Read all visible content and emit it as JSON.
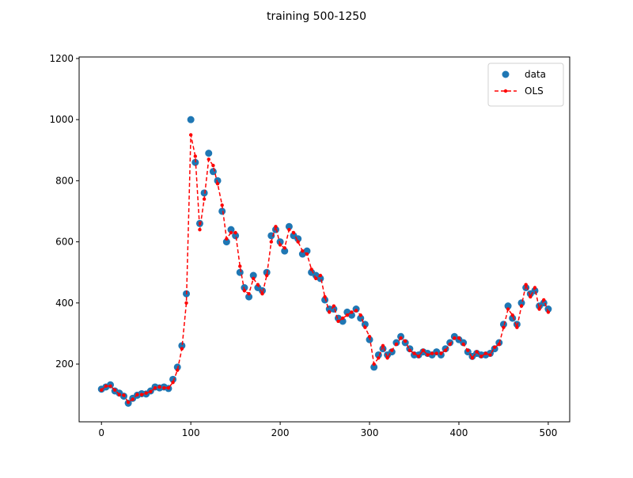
{
  "chart_data": {
    "type": "scatter",
    "title": "training 500-1250",
    "x": [
      0,
      5,
      10,
      15,
      20,
      25,
      30,
      35,
      40,
      45,
      50,
      55,
      60,
      65,
      70,
      75,
      80,
      85,
      90,
      95,
      100,
      105,
      110,
      115,
      120,
      125,
      130,
      135,
      140,
      145,
      150,
      155,
      160,
      165,
      170,
      175,
      180,
      185,
      190,
      195,
      200,
      205,
      210,
      215,
      220,
      225,
      230,
      235,
      240,
      245,
      250,
      255,
      260,
      265,
      270,
      275,
      280,
      285,
      290,
      295,
      300,
      305,
      310,
      315,
      320,
      325,
      330,
      335,
      340,
      345,
      350,
      355,
      360,
      365,
      370,
      375,
      380,
      385,
      390,
      395,
      400,
      405,
      410,
      415,
      420,
      425,
      430,
      435,
      440,
      445,
      450,
      455,
      460,
      465,
      470,
      475,
      480,
      485,
      490,
      495,
      500
    ],
    "series": [
      {
        "name": "data",
        "color": "#1f77b4",
        "marker": "o",
        "linestyle": "none",
        "values": [
          118,
          125,
          132,
          112,
          105,
          95,
          72,
          88,
          98,
          103,
          102,
          112,
          125,
          122,
          125,
          120,
          150,
          190,
          260,
          430,
          1000,
          860,
          660,
          760,
          890,
          830,
          800,
          700,
          600,
          640,
          620,
          500,
          450,
          420,
          490,
          450,
          440,
          500,
          620,
          640,
          600,
          570,
          650,
          620,
          610,
          560,
          570,
          500,
          490,
          480,
          410,
          380,
          380,
          350,
          340,
          370,
          360,
          380,
          350,
          330,
          280,
          190,
          230,
          250,
          230,
          240,
          270,
          290,
          270,
          250,
          230,
          230,
          240,
          235,
          230,
          240,
          230,
          250,
          270,
          290,
          280,
          270,
          240,
          225,
          235,
          230,
          230,
          235,
          250,
          270,
          330,
          390,
          350,
          330,
          400,
          450,
          430,
          440,
          390,
          400,
          380
        ]
      },
      {
        "name": "OLS",
        "color": "#ff0000",
        "marker": ".",
        "linestyle": "--",
        "values": [
          115,
          128,
          128,
          115,
          100,
          98,
          75,
          85,
          100,
          100,
          105,
          110,
          122,
          125,
          122,
          122,
          140,
          180,
          250,
          400,
          950,
          880,
          640,
          740,
          870,
          850,
          790,
          720,
          610,
          630,
          630,
          520,
          440,
          430,
          480,
          460,
          430,
          490,
          600,
          650,
          590,
          580,
          640,
          630,
          600,
          570,
          560,
          510,
          480,
          490,
          420,
          370,
          390,
          340,
          350,
          360,
          370,
          375,
          360,
          320,
          290,
          200,
          220,
          260,
          220,
          245,
          265,
          285,
          275,
          245,
          235,
          225,
          245,
          230,
          235,
          235,
          235,
          245,
          265,
          285,
          285,
          265,
          245,
          220,
          240,
          225,
          235,
          230,
          255,
          265,
          320,
          380,
          360,
          320,
          390,
          460,
          420,
          450,
          380,
          410,
          370
        ]
      }
    ],
    "xlim": [
      -25,
      524
    ],
    "ylim": [
      11,
      1205
    ],
    "xticks": [
      0,
      100,
      200,
      300,
      400,
      500
    ],
    "yticks": [
      200,
      400,
      600,
      800,
      1000,
      1200
    ],
    "legend": "upper right"
  }
}
